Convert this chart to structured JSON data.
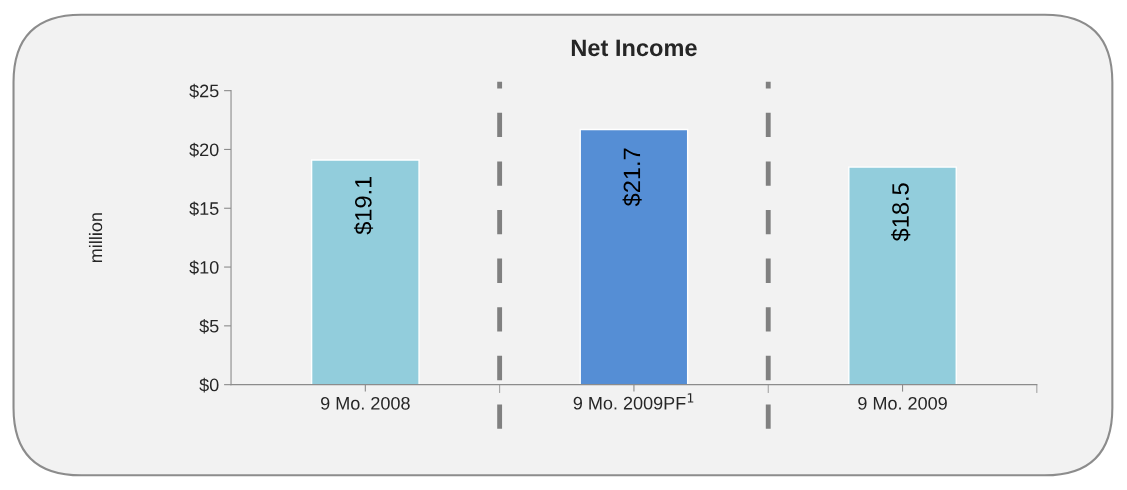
{
  "chart_data": {
    "type": "bar",
    "title": "Net Income",
    "ylabel": "million",
    "categories": [
      "9 Mo. 2008",
      "9 Mo. 2009PF$^{1}$",
      "9 Mo. 2009"
    ],
    "values": [
      19.1,
      21.7,
      18.5
    ],
    "colors": [
      "#92cddc",
      "#558ed5",
      "#92cddc"
    ],
    "value_labels": [
      "$19.1",
      "$21.7",
      "$18.5"
    ],
    "ylim": [
      0,
      25
    ],
    "yticks": [
      {
        "value": 0,
        "label": "$0"
      },
      {
        "value": 5,
        "label": "$5"
      },
      {
        "value": 10,
        "label": "$10"
      },
      {
        "value": 15,
        "label": "$15"
      },
      {
        "value": 20,
        "label": "$20"
      },
      {
        "value": 25,
        "label": "$25"
      }
    ],
    "grid": false,
    "legend": false
  }
}
